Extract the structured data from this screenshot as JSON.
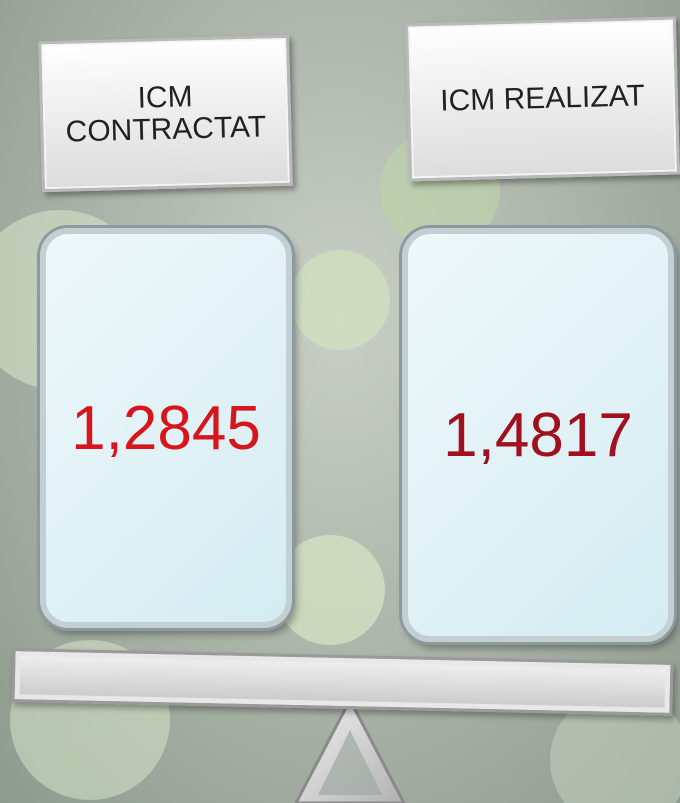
{
  "labels": [
    "ICM\nCONTRACTAT",
    "ICM REALIZAT"
  ],
  "values": [
    "1,2845",
    "1,4817"
  ]
}
